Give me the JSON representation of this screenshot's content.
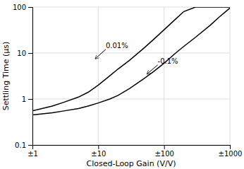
{
  "chart_data": {
    "type": "line",
    "title": "",
    "xlabel": "Closed-Loop Gain (V/V)",
    "ylabel": "Settling Time (μs)",
    "log": true,
    "grid": true,
    "xlim": [
      1,
      1000
    ],
    "ylim": [
      0.1,
      100
    ],
    "xticks": [
      {
        "value": 1,
        "label": "±1"
      },
      {
        "value": 10,
        "label": "±10"
      },
      {
        "value": 100,
        "label": "±100"
      },
      {
        "value": 1000,
        "label": "±1000"
      }
    ],
    "yticks": [
      0.1,
      1,
      10,
      100
    ],
    "x": [
      1,
      2,
      3,
      5,
      7,
      10,
      15,
      20,
      30,
      50,
      70,
      100,
      150,
      200,
      300,
      500,
      700,
      1000
    ],
    "series": [
      {
        "color": "#000000",
        "values": [
          0.55,
          0.7,
          0.85,
          1.1,
          1.4,
          2.0,
          3.2,
          4.5,
          7.0,
          13.0,
          20.0,
          32,
          55,
          80,
          100,
          100,
          100,
          100
        ]
      },
      {
        "color": "#000000",
        "values": [
          0.45,
          0.5,
          0.55,
          0.62,
          0.7,
          0.82,
          1.0,
          1.2,
          1.7,
          2.8,
          4.0,
          6.0,
          10,
          14,
          22,
          40,
          62,
          95
        ]
      }
    ],
    "annotations": [
      {
        "text": "0.01%",
        "x": 9,
        "y": 7.5,
        "text_x": 13,
        "text_y": 12
      },
      {
        "text": "-0.1%",
        "x": 55,
        "y": 3.5,
        "text_x": 80,
        "text_y": 5.5
      }
    ]
  }
}
